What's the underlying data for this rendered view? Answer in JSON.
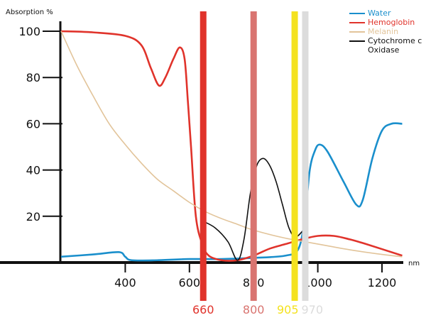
{
  "chart_data": {
    "type": "line",
    "ylabel": "Absorption %",
    "xlabel": "nm",
    "xlim": [
      200,
      1263
    ],
    "ylim": [
      0,
      100
    ],
    "xticks": [
      400,
      600,
      800,
      1000,
      1200
    ],
    "yticks": [
      20,
      40,
      60,
      80,
      100
    ],
    "legend_position": "top-right",
    "series": [
      {
        "name": "Water",
        "color": "#1a8fcc",
        "points": [
          [
            200,
            2.5
          ],
          [
            300,
            3.5
          ],
          [
            380,
            4.5
          ],
          [
            400,
            2.5
          ],
          [
            420,
            1
          ],
          [
            500,
            1
          ],
          [
            600,
            1.5
          ],
          [
            700,
            1.5
          ],
          [
            800,
            2
          ],
          [
            900,
            3
          ],
          [
            940,
            6
          ],
          [
            960,
            20
          ],
          [
            975,
            40
          ],
          [
            990,
            48
          ],
          [
            1005,
            51
          ],
          [
            1030,
            48
          ],
          [
            1080,
            35
          ],
          [
            1120,
            25
          ],
          [
            1140,
            27
          ],
          [
            1170,
            45
          ],
          [
            1200,
            57
          ],
          [
            1230,
            60
          ],
          [
            1263,
            60
          ]
        ]
      },
      {
        "name": "Hemoglobin",
        "color": "#e0332b",
        "points": [
          [
            200,
            100
          ],
          [
            300,
            99.5
          ],
          [
            400,
            98
          ],
          [
            450,
            94
          ],
          [
            480,
            84
          ],
          [
            505,
            76.5
          ],
          [
            525,
            80
          ],
          [
            550,
            88
          ],
          [
            570,
            93
          ],
          [
            585,
            88
          ],
          [
            595,
            70
          ],
          [
            605,
            50
          ],
          [
            620,
            20
          ],
          [
            640,
            8
          ],
          [
            660,
            3
          ],
          [
            700,
            1
          ],
          [
            750,
            1
          ],
          [
            800,
            3
          ],
          [
            850,
            6
          ],
          [
            900,
            8
          ],
          [
            950,
            10
          ],
          [
            1000,
            11.5
          ],
          [
            1050,
            11.5
          ],
          [
            1100,
            10
          ],
          [
            1150,
            8
          ],
          [
            1263,
            3
          ]
        ]
      },
      {
        "name": "Melanin",
        "color": "#e2c49a",
        "points": [
          [
            200,
            100
          ],
          [
            250,
            85
          ],
          [
            300,
            72
          ],
          [
            350,
            60
          ],
          [
            400,
            51
          ],
          [
            450,
            43
          ],
          [
            500,
            36
          ],
          [
            550,
            31
          ],
          [
            600,
            26
          ],
          [
            650,
            22
          ],
          [
            700,
            19
          ],
          [
            750,
            16.5
          ],
          [
            800,
            14
          ],
          [
            900,
            10.5
          ],
          [
            1000,
            8
          ],
          [
            1100,
            5.5
          ],
          [
            1200,
            3.5
          ],
          [
            1263,
            2.5
          ]
        ]
      },
      {
        "name": "Cytochrome c\nOxidase",
        "color": "#111111",
        "points": [
          [
            640,
            18
          ],
          [
            680,
            15
          ],
          [
            720,
            9
          ],
          [
            750,
            1
          ],
          [
            770,
            10
          ],
          [
            790,
            30
          ],
          [
            810,
            42
          ],
          [
            830,
            45
          ],
          [
            850,
            42
          ],
          [
            870,
            35
          ],
          [
            890,
            25
          ],
          [
            910,
            15
          ],
          [
            930,
            11
          ],
          [
            955,
            14
          ]
        ]
      }
    ],
    "bands": [
      {
        "label": "660",
        "x_nm": 643,
        "color": "#e0332b"
      },
      {
        "label": "800",
        "x_nm": 800,
        "color": "#d97470"
      },
      {
        "label": "905",
        "x_nm": 928,
        "color": "#f4e21f"
      },
      {
        "label": "970",
        "x_nm": 961,
        "color": "#dcdcdc"
      }
    ]
  }
}
